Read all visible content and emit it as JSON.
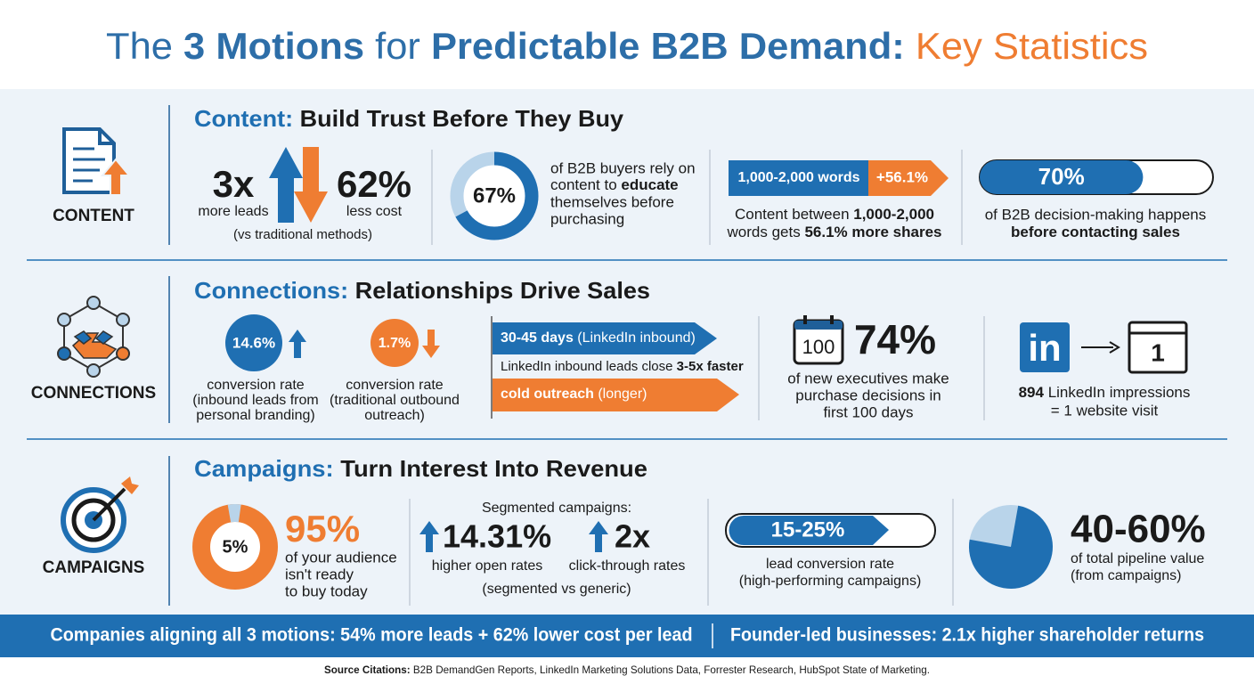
{
  "title": [
    {
      "text": "The "
    },
    {
      "text": "3 Motions",
      "bold": true
    },
    {
      "text": " for "
    },
    {
      "text": "Predictable B2B Demand:",
      "bold": true
    },
    {
      "text": " Key Statistics",
      "color": "#ef7d32"
    }
  ],
  "content": {
    "label": "CONTENT",
    "heading": [
      {
        "text": "Content:",
        "color": "#1f6fb2"
      },
      {
        "text": " Build Trust Before They Buy"
      }
    ],
    "leads": {
      "value": "3x",
      "caption": "more leads"
    },
    "cost": {
      "value": "62%",
      "caption": "less cost"
    },
    "comparison": "(vs traditional methods)",
    "buyers": {
      "donut": {
        "value": 67,
        "label": "67%"
      },
      "text": [
        "of B2B buyers rely on",
        [
          {
            "text": "content to "
          },
          {
            "text": "educate",
            "bold": true
          }
        ],
        "themselves before",
        "purchasing"
      ]
    },
    "length": {
      "bar": "1,000-2,000 words",
      "arrow": "+56.1%",
      "text": [
        [
          {
            "text": "Content between "
          },
          {
            "text": "1,000-2,000",
            "bold": true
          }
        ],
        [
          {
            "text": "words gets "
          },
          {
            "text": "56.1% more shares",
            "bold": true
          }
        ]
      ]
    },
    "decision": {
      "progress": {
        "value": 70,
        "label": "70%"
      },
      "text": [
        "of B2B decision-making happens",
        [
          {
            "text": "before contacting sales",
            "bold": true
          }
        ]
      ]
    }
  },
  "connections": {
    "label": "CONNECTIONS",
    "heading": [
      {
        "text": "Connections:",
        "color": "#1f6fb2"
      },
      {
        "text": " Relationships Drive Sales"
      }
    ],
    "inbound": {
      "badge": "14.6%",
      "text": [
        "conversion rate",
        "(inbound leads from",
        "personal branding)"
      ]
    },
    "outbound": {
      "badge": "1.7%",
      "text": [
        "conversion rate",
        "(traditional outbound",
        "outreach)"
      ]
    },
    "speed": {
      "inbound_arrow": [
        {
          "text": "30-45 days",
          "bold": true
        },
        {
          "text": " (LinkedIn inbound)"
        }
      ],
      "note": [
        {
          "text": "LinkedIn inbound leads close "
        },
        {
          "text": "3-5x faster",
          "bold": true
        }
      ],
      "outbound_arrow": [
        {
          "text": "cold outreach",
          "bold": true
        },
        {
          "text": " (longer)"
        }
      ]
    },
    "executives": {
      "calendar": "100",
      "value": "74%",
      "text": [
        "of new executives make",
        "purchase decisions in",
        "first 100 days"
      ]
    },
    "linkedin": {
      "logo": "in",
      "visit": "1",
      "text": [
        [
          {
            "text": "894",
            "bold": true
          },
          {
            "text": " LinkedIn impressions"
          }
        ],
        "= 1 website visit"
      ]
    }
  },
  "campaigns": {
    "label": "CAMPAIGNS",
    "heading": [
      {
        "text": "Campaigns:",
        "color": "#1f6fb2"
      },
      {
        "text": " Turn Interest Into Revenue"
      }
    ],
    "audience": {
      "donut": {
        "value": 5,
        "label": "5%"
      },
      "value": "95%",
      "text": [
        "of your audience",
        "isn't ready",
        "to buy today"
      ]
    },
    "segmented": {
      "title": "Segmented campaigns:",
      "open": {
        "value": "14.31%",
        "caption": "higher open rates"
      },
      "ctr": {
        "value": "2x",
        "caption": "click-through rates"
      },
      "note": "(segmented vs generic)"
    },
    "conversion": {
      "bar": "15-25%",
      "text": [
        "lead conversion rate",
        "(high-performing campaigns)"
      ]
    },
    "pipeline": {
      "value": "40-60%",
      "text": [
        "of total pipeline value",
        "(from campaigns)"
      ]
    }
  },
  "footer": {
    "left": "Companies aligning all 3 motions: 54% more leads + 62% lower cost per lead",
    "right": "Founder-led businesses: 2.1x higher shareholder returns"
  },
  "source": [
    {
      "text": "Source Citations:",
      "bold": true
    },
    {
      "text": " B2B DemandGen Reports, LinkedIn Marketing Solutions Data, Forrester Research, HubSpot State of Marketing."
    }
  ]
}
